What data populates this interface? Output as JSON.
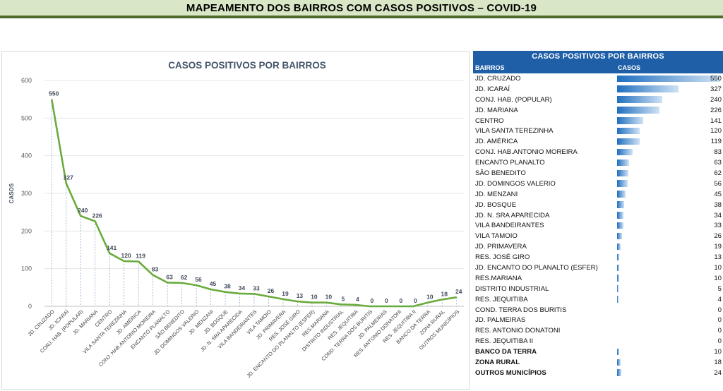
{
  "banner": {
    "title": "MAPEAMENTO DOS BAIRROS COM CASOS POSITIVOS – COVID-19"
  },
  "colors": {
    "line": "#6aab3d",
    "bar": "#1f6fbf",
    "header": "#1f5fa8",
    "banner_bg": "#d9e7c7",
    "banner_border": "#4f6b2d"
  },
  "chart_data": {
    "type": "line",
    "title": "CASOS POSITIVOS POR BAIRROS",
    "xlabel": "",
    "ylabel": "CASOS",
    "ylim": [
      0,
      600
    ],
    "yticks": [
      0,
      100,
      200,
      300,
      400,
      500,
      600
    ],
    "grid": true,
    "categories": [
      "JD. CRUZADO",
      "JD. ICARAÍ",
      "CONJ. HAB. (POPULAR)",
      "JD. MARIANA",
      "CENTRO",
      "VILA SANTA TEREZINHA",
      "JD. AMÉRICA",
      "CONJ. HAB.ANTONIO MOREIRA",
      "ENCANTO PLANALTO",
      "SÃO BENEDITO",
      "JD. DOMINGOS VALERIO",
      "JD. MENZANI",
      "JD. BOSQUE",
      "JD. N. SRA APARECIDA",
      "VILA BANDEIRANTES",
      "VILA TAMOIO",
      "JD. PRIMAVERA",
      "RES. JOSÉ GIRO",
      "JD. ENCANTO DO PLANALTO (ESFER)",
      "RES.MARIANA",
      "DISTRITO INDUSTRIAL",
      "RES. JEQUITIBA",
      "COND. TERRA DOS BURITIS",
      "JD. PALMEIRAS",
      "RES. ANTONIO DONATONI",
      "RES. JEQUITIBA II",
      "BANCO DA TERRA",
      "ZONA RURAL",
      "OUTROS MUNICÍPIOS"
    ],
    "values": [
      550,
      327,
      240,
      226,
      141,
      120,
      119,
      83,
      63,
      62,
      56,
      45,
      38,
      34,
      33,
      26,
      19,
      13,
      10,
      10,
      5,
      4,
      0,
      0,
      0,
      0,
      10,
      18,
      24
    ]
  },
  "table": {
    "title": "CASOS POSITIVOS POR BAIRROS",
    "col_bairros": "BAIRROS",
    "col_casos": "CASOS",
    "max": 550,
    "rows": [
      {
        "name": "JD. CRUZADO",
        "value": 550
      },
      {
        "name": "JD. ICARAÍ",
        "value": 327
      },
      {
        "name": "CONJ. HAB. (POPULAR)",
        "value": 240
      },
      {
        "name": "JD. MARIANA",
        "value": 226
      },
      {
        "name": "CENTRO",
        "value": 141
      },
      {
        "name": "VILA SANTA TEREZINHA",
        "value": 120
      },
      {
        "name": "JD. AMÉRICA",
        "value": 119
      },
      {
        "name": "CONJ. HAB.ANTONIO MOREIRA",
        "value": 83
      },
      {
        "name": "ENCANTO PLANALTO",
        "value": 63
      },
      {
        "name": "SÃO BENEDITO",
        "value": 62
      },
      {
        "name": "JD. DOMINGOS VALERIO",
        "value": 56
      },
      {
        "name": "JD. MENZANI",
        "value": 45
      },
      {
        "name": "JD. BOSQUE",
        "value": 38
      },
      {
        "name": "JD. N. SRA APARECIDA",
        "value": 34
      },
      {
        "name": "VILA BANDEIRANTES",
        "value": 33
      },
      {
        "name": "VILA TAMOIO",
        "value": 26
      },
      {
        "name": "JD. PRIMAVERA",
        "value": 19
      },
      {
        "name": "RES. JOSÉ GIRO",
        "value": 13
      },
      {
        "name": "JD. ENCANTO DO PLANALTO (ESFER)",
        "value": 10
      },
      {
        "name": "RES.MARIANA",
        "value": 10
      },
      {
        "name": "DISTRITO INDUSTRIAL",
        "value": 5
      },
      {
        "name": "RES. JEQUITIBA",
        "value": 4
      },
      {
        "name": "COND. TERRA DOS BURITIS",
        "value": 0
      },
      {
        "name": "JD. PALMEIRAS",
        "value": 0
      },
      {
        "name": "RES. ANTONIO DONATONI",
        "value": 0
      },
      {
        "name": "RES. JEQUITIBA II",
        "value": 0
      },
      {
        "name": "BANCO DA TERRA",
        "value": 10,
        "bold": true
      },
      {
        "name": "ZONA RURAL",
        "value": 18,
        "bold": true
      },
      {
        "name": "OUTROS MUNICÍPIOS",
        "value": 24,
        "bold": true
      }
    ]
  }
}
